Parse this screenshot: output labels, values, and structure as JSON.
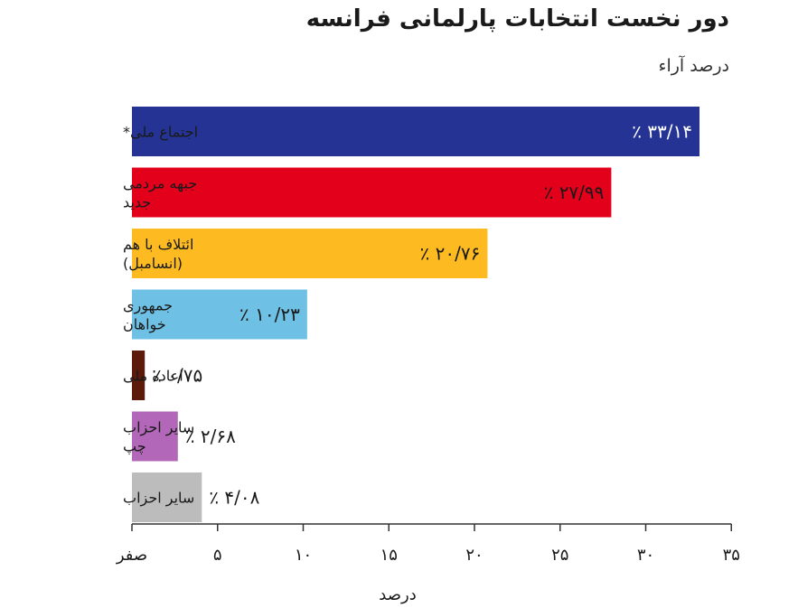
{
  "chart_data": {
    "type": "bar",
    "orientation": "horizontal",
    "title": "دور نخست انتخابات پارلمانی فرانسه",
    "subtitle": "درصد آراء",
    "xlabel": "درصد",
    "xlim": [
      0,
      36
    ],
    "xticks": [
      0,
      5,
      10,
      15,
      20,
      25,
      30,
      35
    ],
    "xtick_labels": [
      "صفر",
      "۵",
      "۱۰",
      "۱۵",
      "۲۰",
      "۲۵",
      "۳۰",
      "۳۵"
    ],
    "grid": false,
    "categories": [
      [
        "اجتماع ملی*"
      ],
      [
        "جبهه مردمی",
        "جدید"
      ],
      [
        "ائتلاف با هم",
        "(انسامبل)"
      ],
      [
        "جمهوری",
        "خواهان"
      ],
      [
        "اعاده ملی"
      ],
      [
        "سایر احزاب",
        "چپ"
      ],
      [
        "سایر احزاب"
      ]
    ],
    "values": [
      33.14,
      27.99,
      20.76,
      10.23,
      0.75,
      2.68,
      4.08
    ],
    "value_labels": [
      "٪ ۳۳/۱۴",
      "٪ ۲۷/۹۹",
      "٪ ۲۰/۷۶",
      "٪ ۱۰/۲۳",
      "٪ ۰/۷۵",
      "٪ ۲/۶۸",
      "٪ ۴/۰۸"
    ],
    "colors": [
      "#253494",
      "#e3001b",
      "#fdbb21",
      "#6ec1e4",
      "#5c1a0b",
      "#b267b8",
      "#bcbcbc"
    ],
    "label_inside": [
      true,
      true,
      true,
      true,
      false,
      false,
      false
    ],
    "label_color": [
      "#ffffff",
      "#1a1a1a",
      "#1a1a1a",
      "#1a1a1a",
      "#1a1a1a",
      "#1a1a1a",
      "#1a1a1a"
    ]
  }
}
